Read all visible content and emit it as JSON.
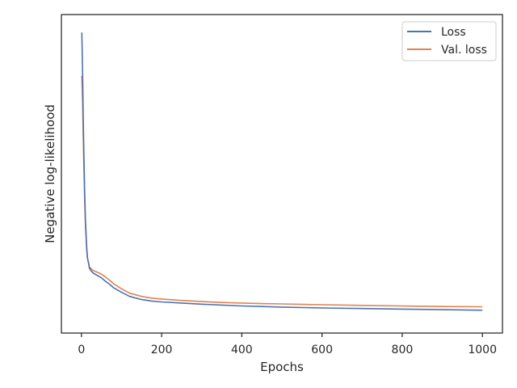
{
  "chart_data": {
    "type": "line",
    "title": "",
    "xlabel": "Epochs",
    "ylabel": "Negative log-likelihood",
    "xlim": [
      -50,
      1050
    ],
    "ylim": [
      0,
      1
    ],
    "x_ticks": [
      0,
      200,
      400,
      600,
      800,
      1000
    ],
    "y_tick_labels_shown": false,
    "grid": false,
    "legend_position": "top-right",
    "colors": {
      "Loss": "#4c72b0",
      "Val. loss": "#dd8452"
    },
    "series": [
      {
        "name": "Loss",
        "x": [
          1,
          3,
          5,
          8,
          10,
          13,
          15,
          18,
          20,
          25,
          30,
          40,
          50,
          60,
          70,
          80,
          100,
          120,
          150,
          175,
          200,
          250,
          300,
          350,
          400,
          450,
          500,
          600,
          700,
          800,
          900,
          1000
        ],
        "values": [
          0.98,
          0.83,
          0.64,
          0.43,
          0.33,
          0.24,
          0.2,
          0.18,
          0.165,
          0.155,
          0.148,
          0.14,
          0.132,
          0.12,
          0.11,
          0.098,
          0.082,
          0.068,
          0.057,
          0.052,
          0.049,
          0.045,
          0.041,
          0.038,
          0.035,
          0.033,
          0.031,
          0.028,
          0.026,
          0.024,
          0.022,
          0.02
        ]
      },
      {
        "name": "Val. loss",
        "x": [
          1,
          3,
          5,
          8,
          10,
          13,
          15,
          18,
          20,
          25,
          30,
          40,
          50,
          60,
          70,
          80,
          100,
          120,
          150,
          175,
          200,
          250,
          300,
          350,
          400,
          450,
          500,
          600,
          700,
          800,
          900,
          1000
        ],
        "values": [
          0.83,
          0.73,
          0.58,
          0.4,
          0.31,
          0.23,
          0.2,
          0.183,
          0.17,
          0.162,
          0.157,
          0.151,
          0.145,
          0.135,
          0.124,
          0.112,
          0.094,
          0.079,
          0.068,
          0.062,
          0.059,
          0.054,
          0.05,
          0.047,
          0.045,
          0.043,
          0.042,
          0.039,
          0.037,
          0.035,
          0.033,
          0.032
        ]
      }
    ]
  }
}
